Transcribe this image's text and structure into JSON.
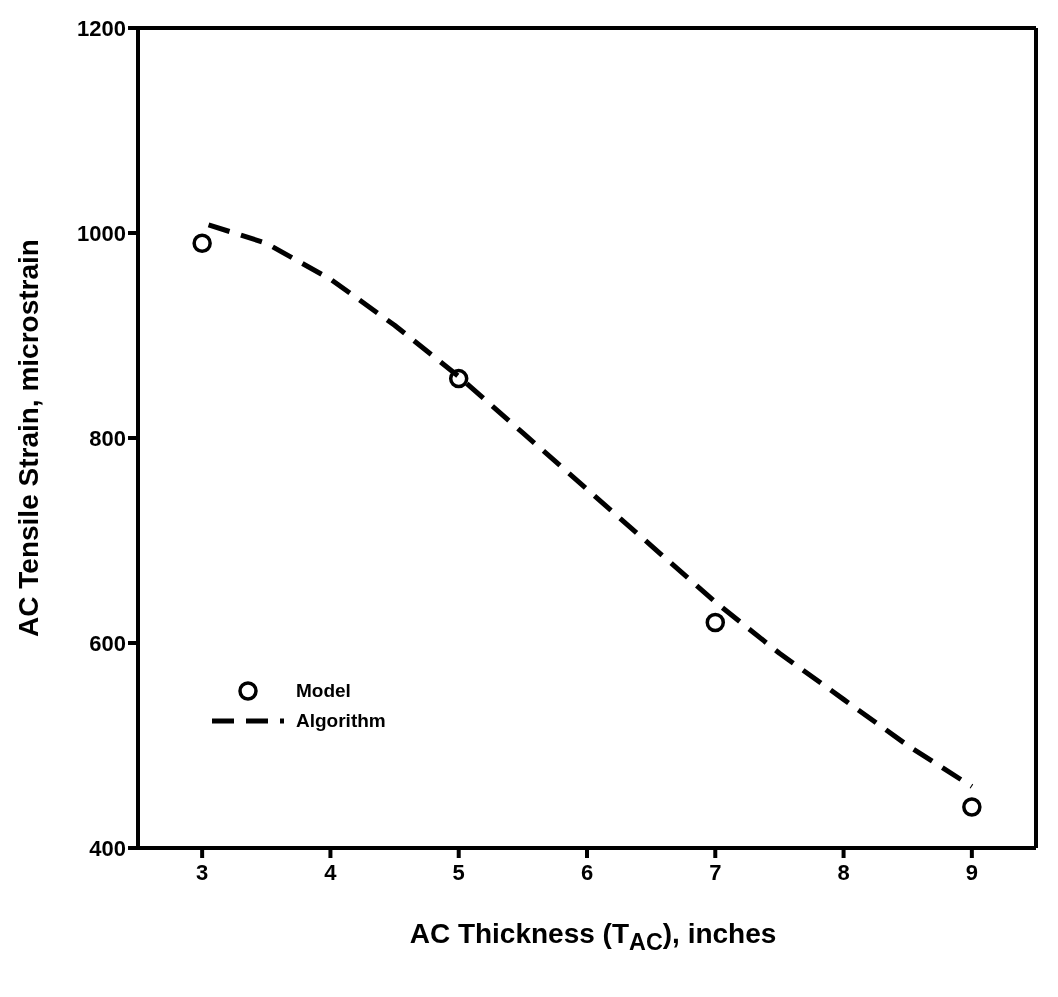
{
  "chart_data": {
    "type": "scatter",
    "xlabel": "AC Thickness (T$_{AC}$), inches",
    "ylabel": "AC Tensile Strain, microstrain",
    "xlim": [
      2.5,
      9.5
    ],
    "xticks": [
      3,
      4,
      5,
      6,
      7,
      8,
      9
    ],
    "ylim": [
      400,
      1200
    ],
    "yticks": [
      400,
      600,
      800,
      1000,
      1200
    ],
    "legend": "bottom left",
    "series": [
      {
        "name": "Model",
        "color": "#000000",
        "marker": "circle",
        "x": [
          3,
          5,
          7,
          9
        ],
        "values": [
          990,
          858,
          620,
          440
        ]
      },
      {
        "name": "Algorithm",
        "type": "line",
        "color": "#000000",
        "line_style": "dashed",
        "marker": "none",
        "x": [
          3.05,
          3.5,
          4,
          4.5,
          5,
          5.5,
          6,
          6.5,
          7,
          7.5,
          8,
          8.5,
          9
        ],
        "values": [
          1008,
          990,
          955,
          910,
          860,
          805,
          750,
          695,
          640,
          590,
          545,
          500,
          460
        ]
      }
    ]
  }
}
